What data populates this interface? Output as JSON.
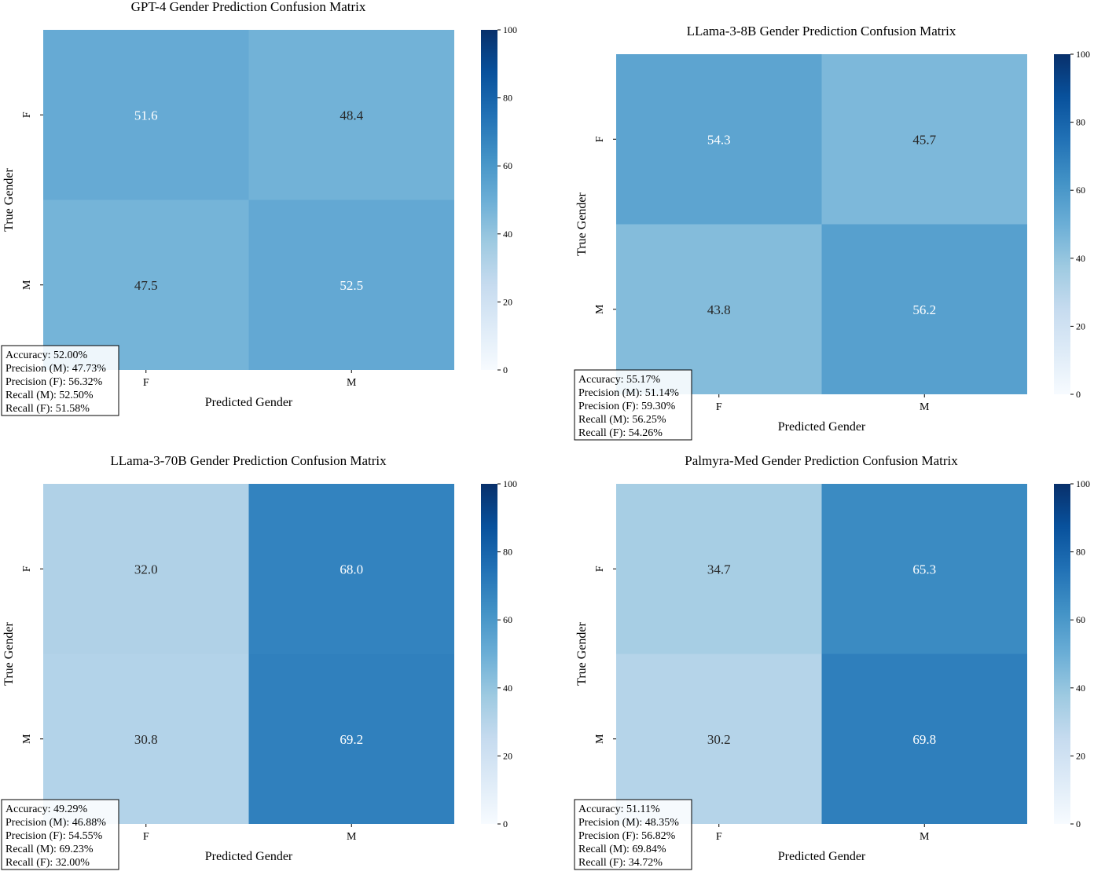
{
  "colormap": {
    "low": "#f7fbff",
    "mid": "#6baed6",
    "high": "#08306b"
  },
  "chart_data": [
    {
      "type": "heatmap",
      "title": "GPT-4 Gender Prediction Confusion Matrix",
      "xlabel": "Predicted Gender",
      "ylabel": "True Gender",
      "x_categories": [
        "F",
        "M"
      ],
      "y_categories": [
        "F",
        "M"
      ],
      "values": [
        [
          51.6,
          48.4
        ],
        [
          47.5,
          52.5
        ]
      ],
      "value_labels": [
        [
          "51.6",
          "48.4"
        ],
        [
          "47.5",
          "52.5"
        ]
      ],
      "color_range": [
        0,
        100
      ],
      "colorbar_ticks": [
        "0",
        "20",
        "40",
        "60",
        "80",
        "100"
      ],
      "metrics": [
        "Accuracy: 52.00%",
        "Precision (M): 47.73%",
        "Precision (F): 56.32%",
        "Recall (M): 52.50%",
        "Recall (F): 51.58%"
      ]
    },
    {
      "type": "heatmap",
      "title": "LLama-3-8B Gender Prediction Confusion Matrix",
      "xlabel": "Predicted Gender",
      "ylabel": "True Gender",
      "x_categories": [
        "F",
        "M"
      ],
      "y_categories": [
        "F",
        "M"
      ],
      "values": [
        [
          54.3,
          45.7
        ],
        [
          43.8,
          56.2
        ]
      ],
      "value_labels": [
        [
          "54.3",
          "45.7"
        ],
        [
          "43.8",
          "56.2"
        ]
      ],
      "color_range": [
        0,
        100
      ],
      "colorbar_ticks": [
        "0",
        "20",
        "40",
        "60",
        "80",
        "100"
      ],
      "metrics": [
        "Accuracy: 55.17%",
        "Precision (M): 51.14%",
        "Precision (F): 59.30%",
        "Recall (M): 56.25%",
        "Recall (F): 54.26%"
      ]
    },
    {
      "type": "heatmap",
      "title": "LLama-3-70B Gender Prediction Confusion Matrix",
      "xlabel": "Predicted Gender",
      "ylabel": "True Gender",
      "x_categories": [
        "F",
        "M"
      ],
      "y_categories": [
        "F",
        "M"
      ],
      "values": [
        [
          32.0,
          68.0
        ],
        [
          30.8,
          69.2
        ]
      ],
      "value_labels": [
        [
          "32.0",
          "68.0"
        ],
        [
          "30.8",
          "69.2"
        ]
      ],
      "color_range": [
        0,
        100
      ],
      "colorbar_ticks": [
        "0",
        "20",
        "40",
        "60",
        "80",
        "100"
      ],
      "metrics": [
        "Accuracy: 49.29%",
        "Precision (M): 46.88%",
        "Precision (F): 54.55%",
        "Recall (M): 69.23%",
        "Recall (F): 32.00%"
      ]
    },
    {
      "type": "heatmap",
      "title": "Palmyra-Med Gender Prediction Confusion Matrix",
      "xlabel": "Predicted Gender",
      "ylabel": "True Gender",
      "x_categories": [
        "F",
        "M"
      ],
      "y_categories": [
        "F",
        "M"
      ],
      "values": [
        [
          34.7,
          65.3
        ],
        [
          30.2,
          69.8
        ]
      ],
      "value_labels": [
        [
          "34.7",
          "65.3"
        ],
        [
          "30.2",
          "69.8"
        ]
      ],
      "color_range": [
        0,
        100
      ],
      "colorbar_ticks": [
        "0",
        "20",
        "40",
        "60",
        "80",
        "100"
      ],
      "metrics": [
        "Accuracy: 51.11%",
        "Precision (M): 48.35%",
        "Precision (F): 56.82%",
        "Recall (M): 69.84%",
        "Recall (F): 34.72%"
      ]
    }
  ]
}
